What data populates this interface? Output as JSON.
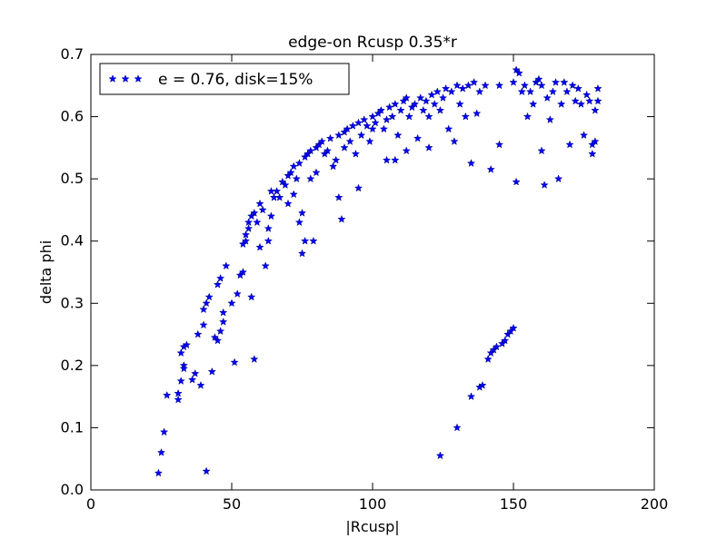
{
  "chart_data": {
    "type": "scatter",
    "title": "edge-on Rcusp 0.35*r",
    "xlabel": "|Rcusp|",
    "ylabel": "delta phi",
    "xlim": [
      0,
      200
    ],
    "ylim": [
      0.0,
      0.7
    ],
    "xticks": [
      0,
      50,
      100,
      150,
      200
    ],
    "yticks": [
      0.0,
      0.1,
      0.2,
      0.3,
      0.4,
      0.5,
      0.6,
      0.7
    ],
    "xtick_labels": [
      "0",
      "50",
      "100",
      "150",
      "200"
    ],
    "ytick_labels": [
      "0.0",
      "0.1",
      "0.2",
      "0.3",
      "0.4",
      "0.5",
      "0.6",
      "0.7"
    ],
    "grid": false,
    "legend_position": "top-left",
    "marker": "star",
    "color": "#0000ff",
    "series": [
      {
        "name": "e = 0.76, disk=15%",
        "points": [
          [
            24,
            0.027
          ],
          [
            25,
            0.06
          ],
          [
            26,
            0.093
          ],
          [
            27,
            0.152
          ],
          [
            31,
            0.155
          ],
          [
            31,
            0.145
          ],
          [
            32,
            0.175
          ],
          [
            33,
            0.2
          ],
          [
            33,
            0.195
          ],
          [
            32,
            0.22
          ],
          [
            33,
            0.23
          ],
          [
            34,
            0.233
          ],
          [
            36,
            0.177
          ],
          [
            37,
            0.187
          ],
          [
            38,
            0.25
          ],
          [
            39,
            0.168
          ],
          [
            40,
            0.265
          ],
          [
            40,
            0.29
          ],
          [
            41,
            0.3
          ],
          [
            42,
            0.31
          ],
          [
            41,
            0.03
          ],
          [
            43,
            0.19
          ],
          [
            44,
            0.245
          ],
          [
            45,
            0.24
          ],
          [
            45,
            0.33
          ],
          [
            46,
            0.34
          ],
          [
            46,
            0.255
          ],
          [
            47,
            0.285
          ],
          [
            47,
            0.27
          ],
          [
            48,
            0.36
          ],
          [
            50,
            0.3
          ],
          [
            51,
            0.205
          ],
          [
            52,
            0.315
          ],
          [
            53,
            0.345
          ],
          [
            54,
            0.35
          ],
          [
            54,
            0.395
          ],
          [
            55,
            0.41
          ],
          [
            55,
            0.4
          ],
          [
            56,
            0.43
          ],
          [
            56,
            0.42
          ],
          [
            57,
            0.44
          ],
          [
            57,
            0.31
          ],
          [
            58,
            0.21
          ],
          [
            58,
            0.445
          ],
          [
            59,
            0.43
          ],
          [
            60,
            0.46
          ],
          [
            60,
            0.39
          ],
          [
            61,
            0.45
          ],
          [
            62,
            0.36
          ],
          [
            63,
            0.4
          ],
          [
            63,
            0.42
          ],
          [
            64,
            0.44
          ],
          [
            64,
            0.48
          ],
          [
            65,
            0.47
          ],
          [
            66,
            0.48
          ],
          [
            67,
            0.47
          ],
          [
            68,
            0.495
          ],
          [
            69,
            0.49
          ],
          [
            70,
            0.505
          ],
          [
            70,
            0.46
          ],
          [
            71,
            0.51
          ],
          [
            72,
            0.52
          ],
          [
            72,
            0.475
          ],
          [
            73,
            0.5
          ],
          [
            74,
            0.525
          ],
          [
            74,
            0.43
          ],
          [
            75,
            0.445
          ],
          [
            75,
            0.38
          ],
          [
            76,
            0.4
          ],
          [
            76,
            0.535
          ],
          [
            77,
            0.54
          ],
          [
            78,
            0.545
          ],
          [
            78,
            0.5
          ],
          [
            79,
            0.4
          ],
          [
            80,
            0.55
          ],
          [
            80,
            0.51
          ],
          [
            81,
            0.555
          ],
          [
            82,
            0.56
          ],
          [
            83,
            0.54
          ],
          [
            84,
            0.545
          ],
          [
            85,
            0.565
          ],
          [
            86,
            0.52
          ],
          [
            87,
            0.53
          ],
          [
            88,
            0.57
          ],
          [
            88,
            0.47
          ],
          [
            89,
            0.435
          ],
          [
            90,
            0.575
          ],
          [
            90,
            0.55
          ],
          [
            91,
            0.58
          ],
          [
            92,
            0.56
          ],
          [
            93,
            0.585
          ],
          [
            94,
            0.54
          ],
          [
            95,
            0.59
          ],
          [
            95,
            0.485
          ],
          [
            96,
            0.57
          ],
          [
            97,
            0.595
          ],
          [
            98,
            0.585
          ],
          [
            99,
            0.56
          ],
          [
            100,
            0.6
          ],
          [
            100,
            0.58
          ],
          [
            101,
            0.59
          ],
          [
            102,
            0.605
          ],
          [
            103,
            0.61
          ],
          [
            104,
            0.58
          ],
          [
            105,
            0.595
          ],
          [
            105,
            0.53
          ],
          [
            106,
            0.615
          ],
          [
            107,
            0.6
          ],
          [
            108,
            0.62
          ],
          [
            108,
            0.53
          ],
          [
            109,
            0.57
          ],
          [
            110,
            0.61
          ],
          [
            111,
            0.625
          ],
          [
            112,
            0.63
          ],
          [
            112,
            0.545
          ],
          [
            113,
            0.6
          ],
          [
            114,
            0.615
          ],
          [
            115,
            0.62
          ],
          [
            116,
            0.565
          ],
          [
            117,
            0.63
          ],
          [
            118,
            0.61
          ],
          [
            119,
            0.625
          ],
          [
            120,
            0.6
          ],
          [
            120,
            0.55
          ],
          [
            121,
            0.635
          ],
          [
            122,
            0.62
          ],
          [
            123,
            0.64
          ],
          [
            124,
            0.055
          ],
          [
            124,
            0.61
          ],
          [
            125,
            0.63
          ],
          [
            126,
            0.645
          ],
          [
            127,
            0.58
          ],
          [
            128,
            0.64
          ],
          [
            129,
            0.56
          ],
          [
            130,
            0.65
          ],
          [
            130,
            0.1
          ],
          [
            131,
            0.62
          ],
          [
            132,
            0.645
          ],
          [
            133,
            0.6
          ],
          [
            134,
            0.65
          ],
          [
            135,
            0.15
          ],
          [
            135,
            0.525
          ],
          [
            136,
            0.655
          ],
          [
            137,
            0.605
          ],
          [
            138,
            0.165
          ],
          [
            138,
            0.64
          ],
          [
            139,
            0.168
          ],
          [
            140,
            0.65
          ],
          [
            141,
            0.21
          ],
          [
            142,
            0.22
          ],
          [
            142,
            0.515
          ],
          [
            143,
            0.225
          ],
          [
            144,
            0.23
          ],
          [
            145,
            0.65
          ],
          [
            145,
            0.555
          ],
          [
            146,
            0.235
          ],
          [
            147,
            0.24
          ],
          [
            148,
            0.25
          ],
          [
            149,
            0.255
          ],
          [
            150,
            0.26
          ],
          [
            150,
            0.655
          ],
          [
            151,
            0.675
          ],
          [
            151,
            0.495
          ],
          [
            152,
            0.67
          ],
          [
            153,
            0.64
          ],
          [
            154,
            0.65
          ],
          [
            155,
            0.6
          ],
          [
            156,
            0.64
          ],
          [
            157,
            0.62
          ],
          [
            158,
            0.655
          ],
          [
            159,
            0.66
          ],
          [
            160,
            0.545
          ],
          [
            160,
            0.65
          ],
          [
            161,
            0.49
          ],
          [
            162,
            0.63
          ],
          [
            163,
            0.595
          ],
          [
            164,
            0.64
          ],
          [
            165,
            0.655
          ],
          [
            166,
            0.5
          ],
          [
            167,
            0.62
          ],
          [
            168,
            0.655
          ],
          [
            169,
            0.64
          ],
          [
            170,
            0.555
          ],
          [
            171,
            0.65
          ],
          [
            172,
            0.625
          ],
          [
            173,
            0.645
          ],
          [
            174,
            0.62
          ],
          [
            175,
            0.57
          ],
          [
            176,
            0.635
          ],
          [
            177,
            0.625
          ],
          [
            178,
            0.54
          ],
          [
            178,
            0.555
          ],
          [
            179,
            0.61
          ],
          [
            179,
            0.56
          ],
          [
            180,
            0.625
          ],
          [
            180,
            0.645
          ]
        ]
      }
    ]
  }
}
